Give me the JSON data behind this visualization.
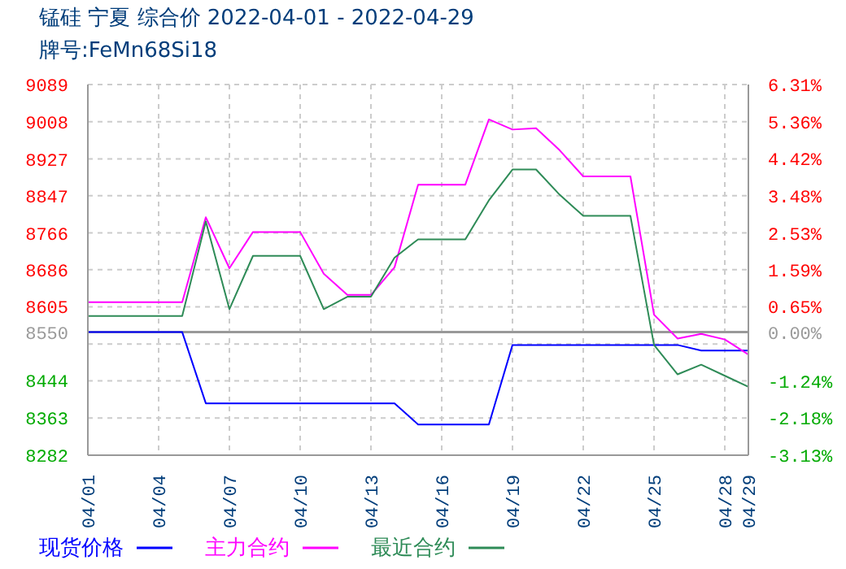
{
  "chart_data": {
    "type": "line",
    "title": "锰硅  宁夏  综合价  2022-04-01 - 2022-04-29",
    "subtitle": "牌号:FeMn68Si18",
    "x": [
      "2022-04-01",
      "2022-04-02",
      "2022-04-03",
      "2022-04-04",
      "2022-04-05",
      "2022-04-06",
      "2022-04-07",
      "2022-04-08",
      "2022-04-09",
      "2022-04-10",
      "2022-04-11",
      "2022-04-12",
      "2022-04-13",
      "2022-04-14",
      "2022-04-15",
      "2022-04-16",
      "2022-04-17",
      "2022-04-18",
      "2022-04-19",
      "2022-04-20",
      "2022-04-21",
      "2022-04-22",
      "2022-04-23",
      "2022-04-24",
      "2022-04-25",
      "2022-04-26",
      "2022-04-27",
      "2022-04-28",
      "2022-04-29"
    ],
    "series": [
      {
        "name": "现货价格",
        "color": "#0000ff",
        "values": [
          8550,
          8550,
          8550,
          8550,
          8550,
          8395,
          8395,
          8395,
          8395,
          8395,
          8395,
          8395,
          8395,
          8395,
          8349,
          8349,
          8349,
          8349,
          8522,
          8522,
          8522,
          8522,
          8522,
          8522,
          8522,
          8522,
          8510,
          8510,
          8510
        ]
      },
      {
        "name": "主力合约",
        "color": "#ff00ff",
        "values": [
          8615,
          8615,
          8615,
          8615,
          8615,
          8800,
          8689,
          8768,
          8768,
          8768,
          8677,
          8631,
          8631,
          8691,
          8871,
          8871,
          8871,
          9013,
          8991,
          8994,
          8946,
          8889,
          8889,
          8889,
          8588,
          8536,
          8546,
          8534,
          8501
        ]
      },
      {
        "name": "最近合约",
        "color": "#2e8b57",
        "values": [
          8585,
          8585,
          8585,
          8585,
          8585,
          8791,
          8600,
          8716,
          8716,
          8716,
          8600,
          8627,
          8627,
          8712,
          8752,
          8752,
          8752,
          8837,
          8904,
          8904,
          8849,
          8803,
          8803,
          8803,
          8522,
          8458,
          8479,
          8455,
          8431
        ]
      }
    ],
    "xlim": [
      "2022-04-01",
      "2022-04-29"
    ],
    "xticks": [
      {
        "value": "2022-04-01",
        "label": "04/01"
      },
      {
        "value": "2022-04-04",
        "label": "04/04"
      },
      {
        "value": "2022-04-07",
        "label": "04/07"
      },
      {
        "value": "2022-04-10",
        "label": "04/10"
      },
      {
        "value": "2022-04-13",
        "label": "04/13"
      },
      {
        "value": "2022-04-16",
        "label": "04/16"
      },
      {
        "value": "2022-04-19",
        "label": "04/19"
      },
      {
        "value": "2022-04-22",
        "label": "04/22"
      },
      {
        "value": "2022-04-25",
        "label": "04/25"
      },
      {
        "value": "2022-04-28",
        "label": "04/28"
      },
      {
        "value": "2022-04-29",
        "label": "04/29"
      }
    ],
    "ylim": [
      8282,
      9089
    ],
    "yticks": [
      8282,
      8363,
      8444,
      {
        "value": 8524,
        "label": null
      },
      8550,
      8605,
      8686,
      8766,
      8847,
      8927,
      9008,
      9089
    ],
    "y2lim": [
      -3.13,
      6.31
    ],
    "y2ticks": [
      {
        "value": -3.13,
        "label": "-3.13%"
      },
      {
        "value": -2.18,
        "label": "-2.18%"
      },
      {
        "value": -1.24,
        "label": "-1.24%"
      },
      {
        "value": 0,
        "label": "0.00%"
      },
      {
        "value": 0.65,
        "label": "0.65%"
      },
      {
        "value": 1.59,
        "label": "1.59%"
      },
      {
        "value": 2.53,
        "label": "2.53%"
      },
      {
        "value": 3.48,
        "label": "3.48%"
      },
      {
        "value": 4.42,
        "label": "4.42%"
      },
      {
        "value": 5.36,
        "label": "5.36%"
      },
      {
        "value": 6.31,
        "label": "6.31%"
      }
    ],
    "ref_lines": [
      {
        "axis": "y",
        "value": 8550,
        "color": "#999999"
      }
    ],
    "grid": true,
    "legend": "bottom",
    "marker": "none",
    "line_style": "solid"
  }
}
